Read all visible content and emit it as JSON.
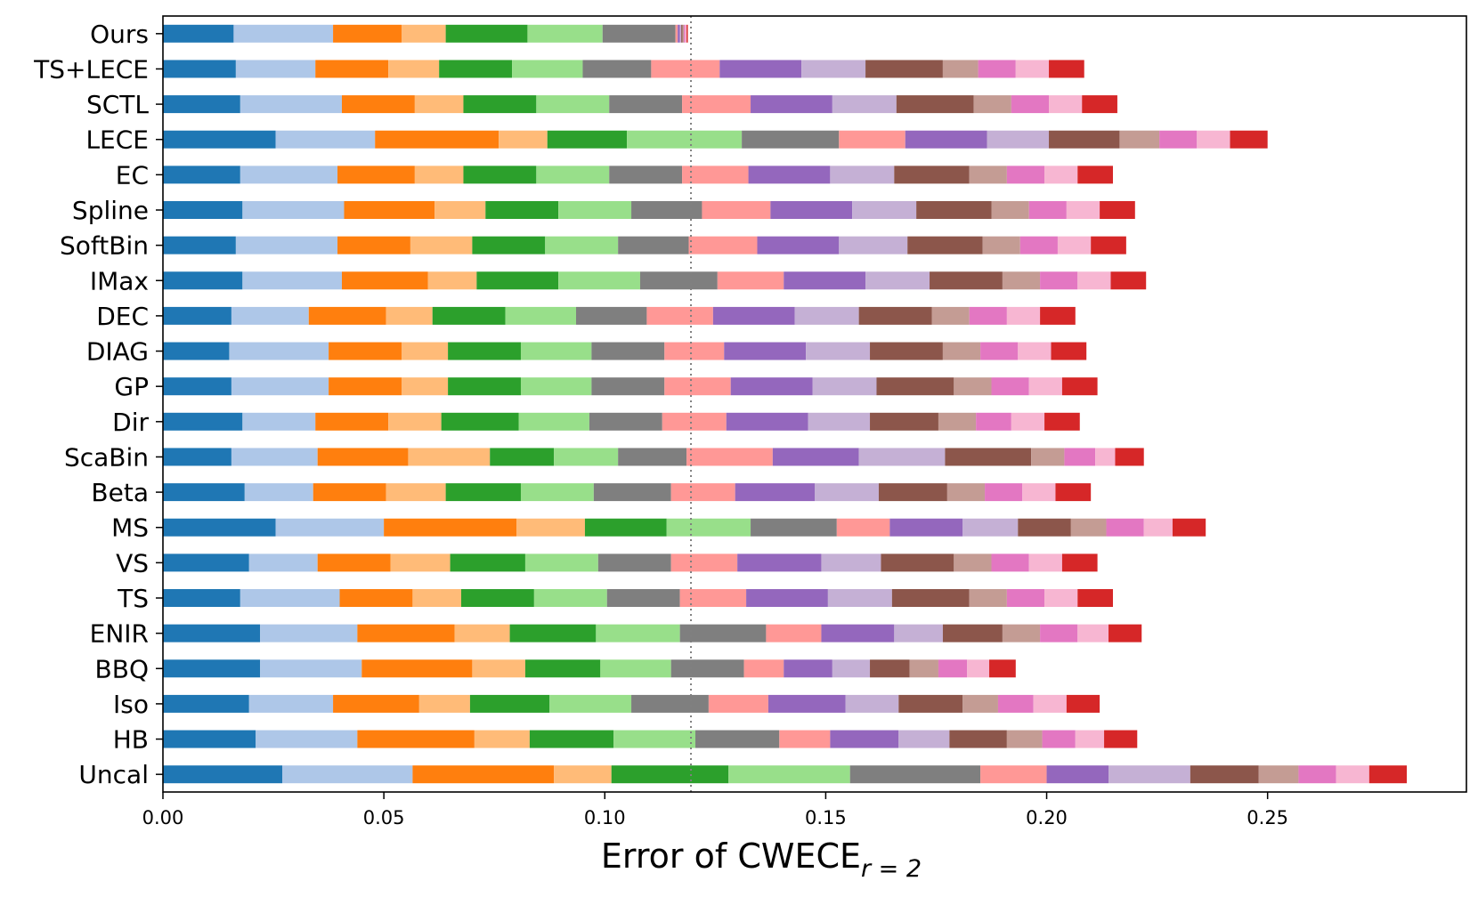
{
  "chart_data": {
    "type": "bar",
    "orientation": "horizontal",
    "stacked": true,
    "xlabel_main": "Error of CWECE",
    "xlabel_sub": "r = 2",
    "ylabel": "",
    "xlim": [
      0,
      0.295
    ],
    "x_ticks": [
      "0.00",
      "0.05",
      "0.10",
      "0.15",
      "0.20",
      "0.25"
    ],
    "x_tick_values": [
      0,
      0.05,
      0.1,
      0.15,
      0.2,
      0.25
    ],
    "reference_line": 0.1195,
    "grid": false,
    "legend": "none",
    "colors": [
      "#1f77b4",
      "#aec7e8",
      "#ff7f0e",
      "#ffbb78",
      "#2ca02c",
      "#98df8a",
      "#7f7f7f",
      "#ff9896",
      "#9467bd",
      "#c5b0d5",
      "#8c564b",
      "#c49c94",
      "#e377c2",
      "#f7b6d2",
      "#d62728"
    ],
    "categories": [
      "Ours",
      "TS+LECE",
      "SCTL",
      "LECE",
      "EC",
      "Spline",
      "SoftBin",
      "IMax",
      "DEC",
      "DIAG",
      "GP",
      "Dir",
      "ScaBin",
      "Beta",
      "MS",
      "VS",
      "TS",
      "ENIR",
      "BBQ",
      "Iso",
      "HB",
      "Uncal"
    ],
    "segments": [
      [
        0.016,
        0.0225,
        0.0155,
        0.01,
        0.0185,
        0.017,
        0.0165,
        0.0005,
        0.0005,
        0.0003,
        0.0003,
        0.0003,
        0.0003,
        0.0003,
        0.0003
      ],
      [
        0.0165,
        0.018,
        0.0165,
        0.0115,
        0.0165,
        0.016,
        0.0155,
        0.0155,
        0.0185,
        0.0145,
        0.0175,
        0.008,
        0.0085,
        0.0075,
        0.008
      ],
      [
        0.0175,
        0.023,
        0.0165,
        0.011,
        0.0165,
        0.0165,
        0.0165,
        0.0155,
        0.0185,
        0.0145,
        0.0175,
        0.0085,
        0.0085,
        0.0075,
        0.008
      ],
      [
        0.0255,
        0.0225,
        0.028,
        0.011,
        0.018,
        0.026,
        0.022,
        0.015,
        0.0185,
        0.014,
        0.016,
        0.009,
        0.0085,
        0.0075,
        0.0085
      ],
      [
        0.0175,
        0.022,
        0.0175,
        0.011,
        0.0165,
        0.0165,
        0.0165,
        0.015,
        0.0185,
        0.0145,
        0.017,
        0.0085,
        0.0085,
        0.0075,
        0.008
      ],
      [
        0.018,
        0.023,
        0.0205,
        0.0115,
        0.0165,
        0.0165,
        0.016,
        0.0155,
        0.0185,
        0.0145,
        0.017,
        0.0085,
        0.0085,
        0.0075,
        0.008
      ],
      [
        0.0165,
        0.023,
        0.0165,
        0.014,
        0.0165,
        0.0165,
        0.016,
        0.0155,
        0.0185,
        0.0155,
        0.017,
        0.0085,
        0.0085,
        0.0075,
        0.008
      ],
      [
        0.018,
        0.0225,
        0.0195,
        0.011,
        0.0185,
        0.0185,
        0.0175,
        0.015,
        0.0185,
        0.0145,
        0.0165,
        0.0085,
        0.0085,
        0.0075,
        0.008
      ],
      [
        0.0155,
        0.0175,
        0.0175,
        0.0105,
        0.0165,
        0.016,
        0.016,
        0.015,
        0.0185,
        0.0145,
        0.0165,
        0.0085,
        0.0085,
        0.0075,
        0.008
      ],
      [
        0.015,
        0.0225,
        0.0165,
        0.0105,
        0.0165,
        0.016,
        0.0165,
        0.0135,
        0.0185,
        0.0145,
        0.0165,
        0.0085,
        0.0085,
        0.0075,
        0.008
      ],
      [
        0.0155,
        0.022,
        0.0165,
        0.0105,
        0.0165,
        0.016,
        0.0165,
        0.015,
        0.0185,
        0.0145,
        0.0175,
        0.0085,
        0.0085,
        0.0075,
        0.008
      ],
      [
        0.018,
        0.0165,
        0.0165,
        0.012,
        0.0175,
        0.016,
        0.0165,
        0.0145,
        0.0185,
        0.014,
        0.0155,
        0.0085,
        0.008,
        0.0075,
        0.008
      ],
      [
        0.0155,
        0.0195,
        0.0205,
        0.0185,
        0.0145,
        0.0145,
        0.0155,
        0.0195,
        0.0195,
        0.0195,
        0.0195,
        0.0075,
        0.007,
        0.0045,
        0.0065
      ],
      [
        0.0185,
        0.0155,
        0.0165,
        0.0135,
        0.017,
        0.0165,
        0.0175,
        0.0145,
        0.018,
        0.0145,
        0.0155,
        0.0085,
        0.0085,
        0.0075,
        0.008
      ],
      [
        0.0255,
        0.0245,
        0.03,
        0.0155,
        0.0185,
        0.019,
        0.0195,
        0.012,
        0.0165,
        0.0125,
        0.012,
        0.008,
        0.0085,
        0.0065,
        0.0075
      ],
      [
        0.0195,
        0.0155,
        0.0165,
        0.0135,
        0.017,
        0.0165,
        0.0165,
        0.015,
        0.019,
        0.0135,
        0.0165,
        0.0085,
        0.0085,
        0.0075,
        0.008
      ],
      [
        0.0175,
        0.0225,
        0.0165,
        0.011,
        0.0165,
        0.0165,
        0.0165,
        0.015,
        0.0185,
        0.0145,
        0.0175,
        0.0085,
        0.0085,
        0.0075,
        0.008
      ],
      [
        0.022,
        0.022,
        0.022,
        0.0125,
        0.0195,
        0.019,
        0.0195,
        0.0125,
        0.0165,
        0.011,
        0.0135,
        0.0085,
        0.0085,
        0.007,
        0.0075
      ],
      [
        0.022,
        0.023,
        0.025,
        0.012,
        0.017,
        0.016,
        0.0165,
        0.009,
        0.011,
        0.0085,
        0.009,
        0.0065,
        0.0065,
        0.005,
        0.006
      ],
      [
        0.0195,
        0.019,
        0.0195,
        0.0115,
        0.018,
        0.0185,
        0.0175,
        0.0135,
        0.0175,
        0.012,
        0.0145,
        0.008,
        0.008,
        0.0075,
        0.0075
      ],
      [
        0.021,
        0.023,
        0.0265,
        0.0125,
        0.019,
        0.0185,
        0.019,
        0.0115,
        0.0155,
        0.0115,
        0.013,
        0.008,
        0.0075,
        0.0065,
        0.0075
      ],
      [
        0.027,
        0.0295,
        0.032,
        0.013,
        0.0265,
        0.0275,
        0.0295,
        0.015,
        0.014,
        0.0185,
        0.0155,
        0.009,
        0.0085,
        0.0075,
        0.0085
      ]
    ]
  }
}
